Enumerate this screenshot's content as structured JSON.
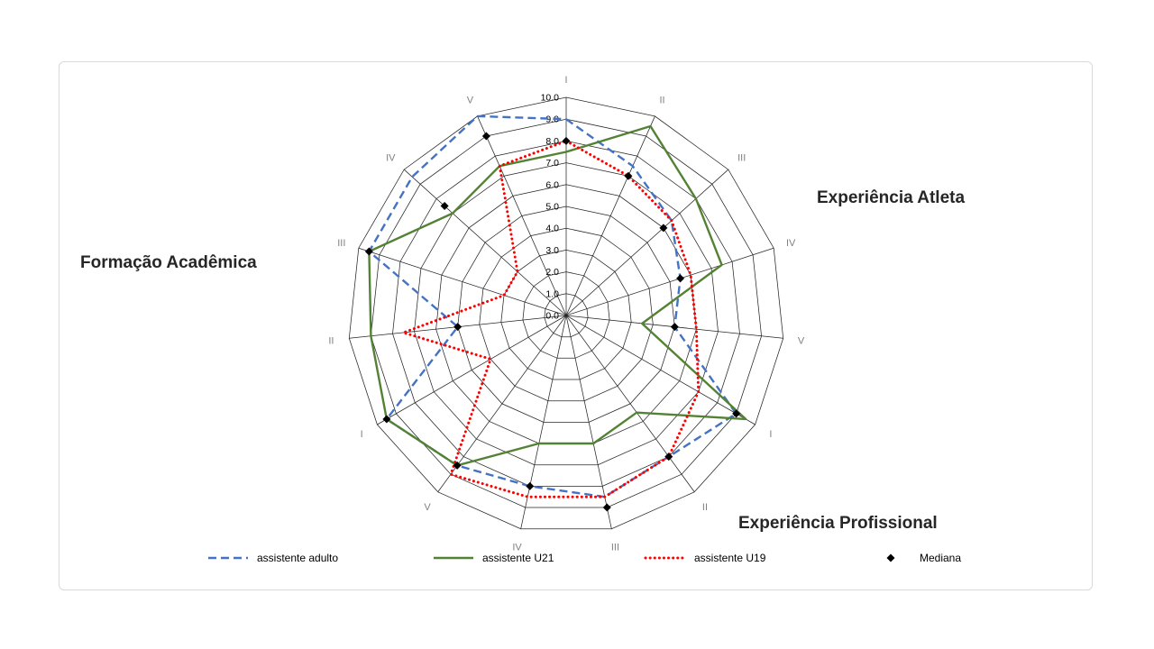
{
  "panel": {
    "background": "#ffffff",
    "border_color": "#d9d9d9"
  },
  "chart_data": {
    "type": "radar",
    "axes": [
      "I",
      "II",
      "III",
      "IV",
      "V",
      "I",
      "II",
      "III",
      "IV",
      "V",
      "I",
      "II",
      "III",
      "IV",
      "V"
    ],
    "group_labels": [
      {
        "text": "Experiência Atleta"
      },
      {
        "text": "Experiência Profissional"
      },
      {
        "text": "Formação Acadêmica"
      }
    ],
    "radial_ticks": [
      "0.0",
      "1.0",
      "2.0",
      "3.0",
      "4.0",
      "5.0",
      "6.0",
      "7.0",
      "8.0",
      "9.0",
      "10.0"
    ],
    "rlim": [
      0,
      10
    ],
    "grid": true,
    "grid_color": "#262626",
    "axis_label_color": "#808080",
    "legend_position": "bottom",
    "series": [
      {
        "name": "assistente adulto",
        "color": "#4472C4",
        "style": "dashed",
        "values": [
          9,
          7.5,
          6.5,
          5.5,
          5,
          9,
          8,
          8.5,
          8,
          8.5,
          9.5,
          5,
          9.5,
          9.5,
          10
        ]
      },
      {
        "name": "assistente U21",
        "color": "#548235",
        "style": "solid",
        "values": [
          7.5,
          9.5,
          8,
          7.5,
          3.5,
          9.5,
          5.5,
          6,
          6,
          8.5,
          9.5,
          9,
          9.5,
          7,
          7.5
        ]
      },
      {
        "name": "assistente U19",
        "color": "#FF0000",
        "style": "dotted",
        "values": [
          8,
          7,
          6.5,
          6,
          6,
          7,
          8,
          8.5,
          8.5,
          9,
          4,
          7.5,
          3,
          3,
          7.5
        ]
      },
      {
        "name": "Mediana",
        "color": "#000000",
        "style": "points",
        "marker": "diamond",
        "values": [
          8,
          7,
          6,
          5.5,
          5,
          9,
          8,
          9,
          8,
          8.5,
          9.5,
          5,
          9.5,
          7.5,
          9
        ]
      }
    ]
  }
}
